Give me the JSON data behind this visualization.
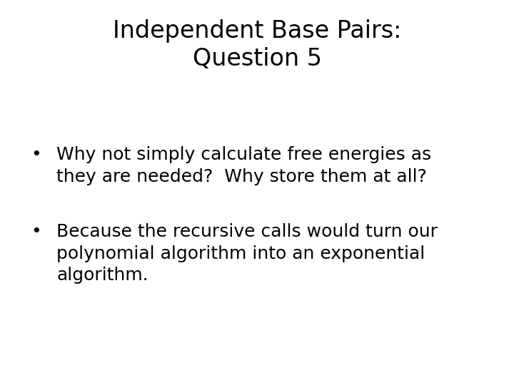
{
  "title_line1": "Independent Base Pairs:",
  "title_line2": "Question 5",
  "bullet1_line1": "Why not simply calculate free energies as",
  "bullet1_line2": "they are needed?  Why store them at all?",
  "bullet2_line1": "Because the recursive calls would turn our",
  "bullet2_line2": "polynomial algorithm into an exponential",
  "bullet2_line3": "algorithm.",
  "background_color": "#ffffff",
  "text_color": "#000000",
  "title_fontsize": 24,
  "body_fontsize": 18,
  "bullet_char": "•"
}
